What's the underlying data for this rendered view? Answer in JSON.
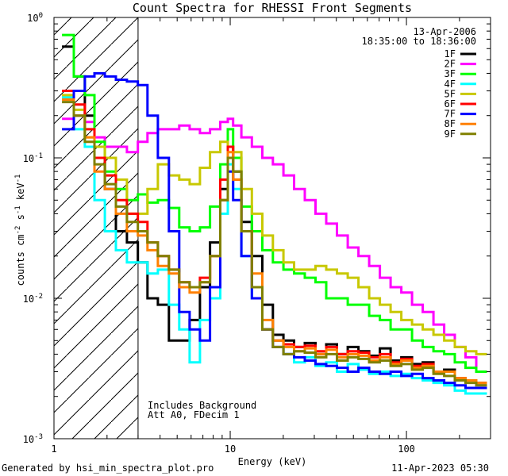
{
  "chart_data": {
    "type": "line",
    "step": true,
    "title": "Count Spectra for RHESSI Front Segments",
    "xlabel": "Energy (keV)",
    "ylabel_parts": [
      "counts cm",
      "-2",
      " s",
      "-1",
      " keV",
      "-1"
    ],
    "x_scale": "log",
    "y_scale": "log",
    "xlim": [
      1,
      300
    ],
    "ylim": [
      0.001,
      1
    ],
    "x_ticks": [
      {
        "value": 1,
        "label": "1"
      },
      {
        "value": 10,
        "label": "10"
      },
      {
        "value": 100,
        "label": "100"
      }
    ],
    "y_ticks": [
      {
        "value": 1,
        "label": "10",
        "exp": "0"
      },
      {
        "value": 0.1,
        "label": "10",
        "exp": "-1"
      },
      {
        "value": 0.01,
        "label": "10",
        "exp": "-2"
      },
      {
        "value": 0.001,
        "label": "10",
        "exp": "-3"
      }
    ],
    "date": "13-Apr-2006",
    "time_range": "18:35:00 to 18:36:00",
    "legend_position": "top-right",
    "hatched_region_keV": [
      1,
      3
    ],
    "annotations": [
      "Includes Background",
      "Att A0, FDecim 1"
    ],
    "footer_left": "Generated by hsi_min_spectra_plot.pro",
    "footer_right": "11-Apr-2023 05:30",
    "x": [
      1.2,
      1.4,
      1.6,
      1.8,
      2.1,
      2.4,
      2.8,
      3.2,
      3.6,
      4.2,
      4.8,
      5.5,
      6.3,
      7.2,
      8.2,
      9.4,
      10.0,
      10.8,
      12.4,
      14.2,
      16.3,
      18.7,
      21.5,
      24.7,
      28.4,
      32.7,
      37.6,
      43.3,
      49.8,
      57.3,
      65.9,
      75.8,
      87.2,
      100.3,
      115.4,
      132.7,
      152.6,
      175.5,
      201.8,
      232.1,
      266.9
    ],
    "series": [
      {
        "name": "1F",
        "color": "#000000",
        "values": [
          0.62,
          0.38,
          0.2,
          0.1,
          0.06,
          0.03,
          0.025,
          0.018,
          0.01,
          0.009,
          0.005,
          0.005,
          0.007,
          0.012,
          0.025,
          0.06,
          0.12,
          0.08,
          0.035,
          0.02,
          0.009,
          0.0055,
          0.005,
          0.0045,
          0.0048,
          0.004,
          0.0047,
          0.004,
          0.0045,
          0.0042,
          0.0039,
          0.0044,
          0.0036,
          0.0038,
          0.0034,
          0.0035,
          0.003,
          0.0031,
          0.0027,
          0.0026,
          0.0025
        ]
      },
      {
        "name": "2F",
        "color": "#ff00ff",
        "values": [
          0.19,
          0.2,
          0.18,
          0.14,
          0.12,
          0.12,
          0.11,
          0.13,
          0.15,
          0.16,
          0.16,
          0.17,
          0.16,
          0.15,
          0.16,
          0.18,
          0.19,
          0.17,
          0.14,
          0.12,
          0.1,
          0.09,
          0.075,
          0.06,
          0.05,
          0.04,
          0.034,
          0.028,
          0.023,
          0.02,
          0.017,
          0.014,
          0.012,
          0.011,
          0.009,
          0.008,
          0.0065,
          0.0055,
          0.0045,
          0.0038,
          0.003
        ]
      },
      {
        "name": "3F",
        "color": "#00ff00",
        "values": [
          0.75,
          0.38,
          0.28,
          0.13,
          0.08,
          0.06,
          0.05,
          0.055,
          0.048,
          0.05,
          0.044,
          0.032,
          0.03,
          0.032,
          0.045,
          0.09,
          0.16,
          0.1,
          0.045,
          0.03,
          0.022,
          0.018,
          0.016,
          0.015,
          0.014,
          0.013,
          0.01,
          0.01,
          0.009,
          0.009,
          0.0075,
          0.007,
          0.006,
          0.006,
          0.005,
          0.0045,
          0.0042,
          0.004,
          0.0035,
          0.0032,
          0.003
        ]
      },
      {
        "name": "4F",
        "color": "#00ffff",
        "values": [
          0.27,
          0.16,
          0.12,
          0.05,
          0.03,
          0.022,
          0.018,
          0.018,
          0.015,
          0.016,
          0.009,
          0.006,
          0.0035,
          0.007,
          0.01,
          0.04,
          0.09,
          0.06,
          0.02,
          0.01,
          0.006,
          0.005,
          0.004,
          0.0035,
          0.0038,
          0.0033,
          0.0035,
          0.003,
          0.0034,
          0.0031,
          0.0029,
          0.003,
          0.0028,
          0.0029,
          0.0027,
          0.0026,
          0.0025,
          0.0024,
          0.0022,
          0.0021,
          0.0021
        ]
      },
      {
        "name": "5F",
        "color": "#c8c800",
        "values": [
          0.28,
          0.22,
          0.14,
          0.12,
          0.1,
          0.07,
          0.04,
          0.04,
          0.06,
          0.09,
          0.075,
          0.07,
          0.065,
          0.085,
          0.11,
          0.13,
          0.12,
          0.11,
          0.06,
          0.04,
          0.028,
          0.022,
          0.018,
          0.016,
          0.016,
          0.017,
          0.016,
          0.015,
          0.014,
          0.012,
          0.01,
          0.009,
          0.008,
          0.007,
          0.0065,
          0.006,
          0.0055,
          0.005,
          0.0045,
          0.0042,
          0.004
        ]
      },
      {
        "name": "6F",
        "color": "#ff0000",
        "values": [
          0.3,
          0.24,
          0.16,
          0.1,
          0.075,
          0.05,
          0.04,
          0.035,
          0.025,
          0.02,
          0.016,
          0.013,
          0.012,
          0.014,
          0.02,
          0.07,
          0.12,
          0.07,
          0.03,
          0.012,
          0.006,
          0.005,
          0.0047,
          0.0045,
          0.0046,
          0.0042,
          0.0045,
          0.004,
          0.0042,
          0.0041,
          0.0038,
          0.004,
          0.0035,
          0.0037,
          0.0033,
          0.0034,
          0.003,
          0.003,
          0.0027,
          0.0026,
          0.0025
        ]
      },
      {
        "name": "7F",
        "color": "#0000ff",
        "values": [
          0.16,
          0.3,
          0.38,
          0.4,
          0.38,
          0.36,
          0.35,
          0.33,
          0.2,
          0.1,
          0.03,
          0.008,
          0.006,
          0.005,
          0.012,
          0.05,
          0.08,
          0.05,
          0.02,
          0.01,
          0.006,
          0.0045,
          0.004,
          0.0038,
          0.0036,
          0.0034,
          0.0033,
          0.0032,
          0.003,
          0.0032,
          0.003,
          0.0029,
          0.003,
          0.0028,
          0.0029,
          0.0027,
          0.0026,
          0.0025,
          0.0024,
          0.0023,
          0.0023
        ]
      },
      {
        "name": "8F",
        "color": "#ff8000",
        "values": [
          0.26,
          0.2,
          0.14,
          0.08,
          0.06,
          0.04,
          0.03,
          0.028,
          0.022,
          0.017,
          0.015,
          0.012,
          0.011,
          0.013,
          0.02,
          0.05,
          0.11,
          0.07,
          0.03,
          0.015,
          0.007,
          0.005,
          0.0045,
          0.0042,
          0.0044,
          0.004,
          0.0043,
          0.0038,
          0.004,
          0.0039,
          0.0036,
          0.0038,
          0.0034,
          0.0036,
          0.0032,
          0.0033,
          0.003,
          0.003,
          0.0027,
          0.0026,
          0.0025
        ]
      },
      {
        "name": "9F",
        "color": "#808000",
        "values": [
          0.25,
          0.2,
          0.13,
          0.09,
          0.065,
          0.045,
          0.035,
          0.03,
          0.025,
          0.02,
          0.016,
          0.013,
          0.012,
          0.013,
          0.02,
          0.05,
          0.1,
          0.08,
          0.03,
          0.012,
          0.006,
          0.0045,
          0.004,
          0.0042,
          0.0041,
          0.0038,
          0.004,
          0.0036,
          0.0038,
          0.0037,
          0.0035,
          0.0036,
          0.0033,
          0.0034,
          0.0031,
          0.0032,
          0.0029,
          0.0028,
          0.0026,
          0.0025,
          0.0024
        ]
      }
    ]
  }
}
